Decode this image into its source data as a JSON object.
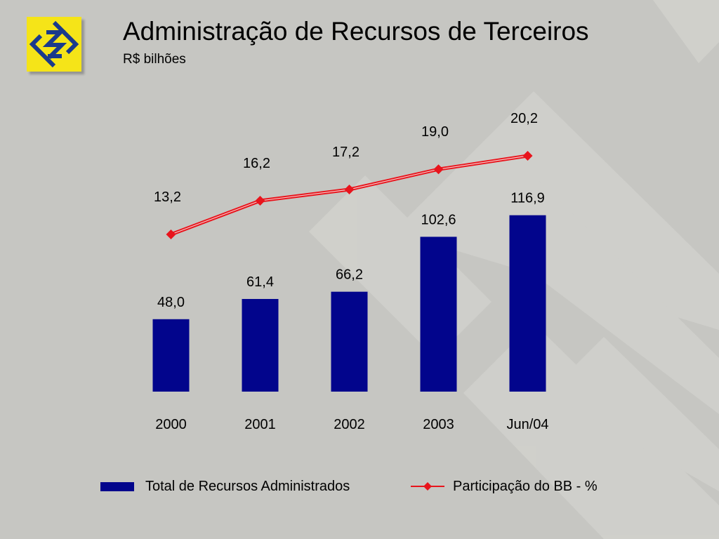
{
  "header": {
    "title": "Administração de Recursos de Terceiros",
    "subtitle": "R$ bilhões"
  },
  "logo": {
    "icon": "banco-do-brasil-logo",
    "bg_color": "#f5e418",
    "mark_color": "#1a3a8c"
  },
  "chart_data": {
    "type": "bar+line",
    "categories": [
      "2000",
      "2001",
      "2002",
      "2003",
      "Jun/04"
    ],
    "series": [
      {
        "name": "Total de Recursos Administrados",
        "type": "bar",
        "values": [
          48.0,
          61.4,
          66.2,
          102.6,
          116.9
        ],
        "labels": [
          "48,0",
          "61,4",
          "66,2",
          "102,6",
          "116,9"
        ],
        "color": "#02058c"
      },
      {
        "name": "Participação do BB - %",
        "type": "line",
        "values": [
          13.2,
          16.2,
          17.2,
          19.0,
          20.2
        ],
        "labels": [
          "13,2",
          "16,2",
          "17,2",
          "19,0",
          "20,2"
        ],
        "color": "#e8141c"
      }
    ],
    "grid": false,
    "legend": "bottom"
  }
}
